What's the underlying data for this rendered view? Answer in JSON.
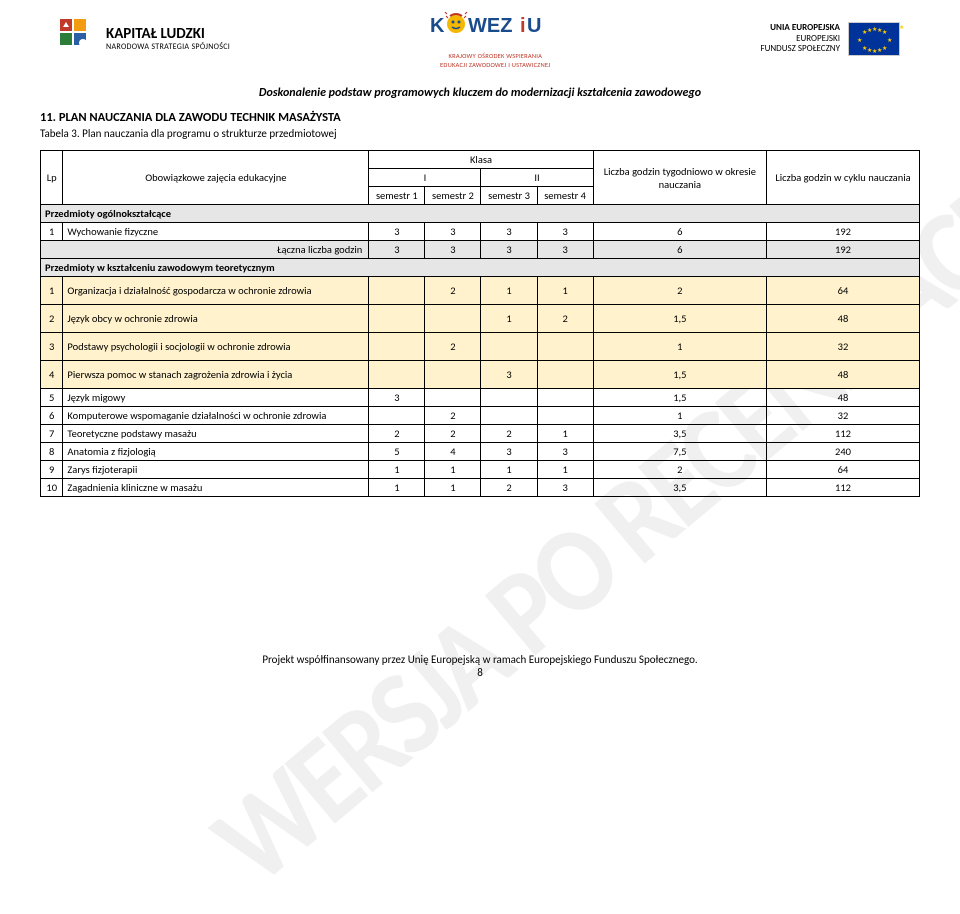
{
  "header": {
    "left_logo": {
      "title": "KAPITAŁ LUDZKI",
      "subtitle": "NARODOWA STRATEGIA SPÓJNOŚCI"
    },
    "mid_logo": {
      "name": "KOWEZiU",
      "sub1": "KRAJOWY OŚRODEK WSPIERANIA",
      "sub2": "EDUKACJI ZAWODOWEJ I USTAWICZNEJ"
    },
    "right_logo": {
      "line1": "UNIA EUROPEJSKA",
      "line2": "EUROPEJSKI",
      "line3": "FUNDUSZ SPOŁECZNY"
    }
  },
  "subtitle": "Doskonalenie podstaw programowych kluczem do modernizacji kształcenia zawodowego",
  "section": {
    "title": "11. PLAN NAUCZANIA DLA ZAWODU TECHNIK MASAŻYSTA",
    "table_label": "Tabela 3. Plan nauczania dla programu o strukturze przedmiotowej"
  },
  "table": {
    "head": {
      "lp": "Lp",
      "name": "Obowiązkowe zajęcia edukacyjne",
      "klasa": "Klasa",
      "roman": [
        "I",
        "II"
      ],
      "sem": [
        "semestr 1",
        "semestr 2",
        "semestr 3",
        "semestr 4"
      ],
      "weekly": "Liczba godzin tygodniowo w okresie nauczania",
      "cycle": "Liczba godzin w cyklu nauczania"
    },
    "group1": "Przedmioty ogólnokształcące",
    "row_wf": {
      "lp": "1",
      "name": "Wychowanie fizyczne",
      "s": [
        "3",
        "3",
        "3",
        "3"
      ],
      "w": "6",
      "c": "192"
    },
    "sum1": {
      "label": "Łączna liczba godzin",
      "s": [
        "3",
        "3",
        "3",
        "3"
      ],
      "w": "6",
      "c": "192"
    },
    "group2": "Przedmioty w kształceniu zawodowym teoretycznym",
    "rows": [
      {
        "lp": "1",
        "name": "Organizacja i działalność gospodarcza w ochronie zdrowia",
        "s": [
          "",
          "2",
          "1",
          "1"
        ],
        "w": "2",
        "c": "64",
        "yellow": true
      },
      {
        "lp": "2",
        "name": "Język obcy w ochronie zdrowia",
        "s": [
          "",
          "",
          "1",
          "2"
        ],
        "w": "1,5",
        "c": "48",
        "yellow": true
      },
      {
        "lp": "3",
        "name": "Podstawy psychologii i socjologii w ochronie zdrowia",
        "s": [
          "",
          "2",
          "",
          ""
        ],
        "w": "1",
        "c": "32",
        "yellow": true
      },
      {
        "lp": "4",
        "name": "Pierwsza pomoc w stanach zagrożenia zdrowia i życia",
        "s": [
          "",
          "",
          "3",
          ""
        ],
        "w": "1,5",
        "c": "48",
        "yellow": true
      },
      {
        "lp": "5",
        "name": "Język migowy",
        "s": [
          "3",
          "",
          "",
          ""
        ],
        "w": "1,5",
        "c": "48",
        "yellow": false
      },
      {
        "lp": "6",
        "name": "Komputerowe wspomaganie działalności w ochronie zdrowia",
        "s": [
          "",
          "2",
          "",
          ""
        ],
        "w": "1",
        "c": "32",
        "yellow": false
      },
      {
        "lp": "7",
        "name": "Teoretyczne podstawy masażu",
        "s": [
          "2",
          "2",
          "2",
          "1"
        ],
        "w": "3,5",
        "c": "112",
        "yellow": false
      },
      {
        "lp": "8",
        "name": "Anatomia z fizjologią",
        "s": [
          "5",
          "4",
          "3",
          "3"
        ],
        "w": "7,5",
        "c": "240",
        "yellow": false
      },
      {
        "lp": "9",
        "name": "Zarys fizjoterapii",
        "s": [
          "1",
          "1",
          "1",
          "1"
        ],
        "w": "2",
        "c": "64",
        "yellow": false
      },
      {
        "lp": "10",
        "name": "Zagadnienia kliniczne w masażu",
        "s": [
          "1",
          "1",
          "2",
          "3"
        ],
        "w": "3,5",
        "c": "112",
        "yellow": false
      }
    ]
  },
  "footer": {
    "text": "Projekt współfinansowany przez Unię Europejską w ramach Europejskiego Funduszu Społecznego.",
    "page": "8"
  },
  "watermark": "WERSJA PO RECENZJACH"
}
